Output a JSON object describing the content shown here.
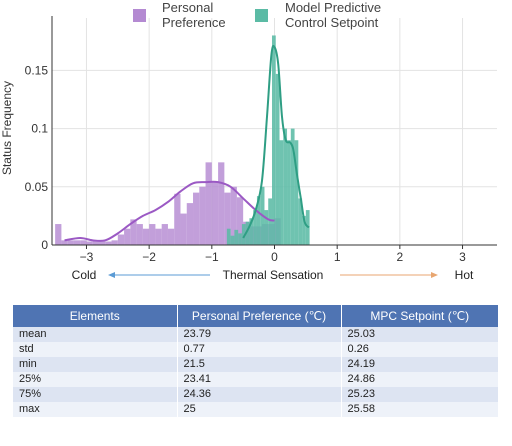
{
  "chart_data": {
    "type": "histogram",
    "ylabel": "Status Frequency",
    "xlabel": "Thermal Sensation",
    "x_scale_labels": {
      "cold": "Cold",
      "hot": "Hot"
    },
    "xlim": [
      -3.55,
      3.55
    ],
    "ylim": [
      0,
      0.195
    ],
    "x_ticks": [
      -3,
      -2,
      -1,
      0,
      1,
      2,
      3
    ],
    "y_ticks": [
      0,
      0.05,
      0.1,
      0.15
    ],
    "y_tick_labels": [
      "0",
      "0.05",
      "0.1",
      "0.15"
    ],
    "legend_position": "top",
    "series": [
      {
        "name": "Personal Preference",
        "color": "#b48ad2",
        "bin_width": 0.1,
        "bins": [
          [
            -3.5,
            0.018
          ],
          [
            -3.4,
            0.004
          ],
          [
            -3.3,
            0.004
          ],
          [
            -3.2,
            0.004
          ],
          [
            -3.1,
            0.004
          ],
          [
            -3.0,
            0.003
          ],
          [
            -2.9,
            0.003
          ],
          [
            -2.8,
            0.004
          ],
          [
            -2.7,
            0.003
          ],
          [
            -2.6,
            0.004
          ],
          [
            -2.5,
            0.009
          ],
          [
            -2.4,
            0.014
          ],
          [
            -2.3,
            0.022
          ],
          [
            -2.2,
            0.018
          ],
          [
            -2.1,
            0.014
          ],
          [
            -2.0,
            0.018
          ],
          [
            -1.9,
            0.014
          ],
          [
            -1.8,
            0.018
          ],
          [
            -1.7,
            0.014
          ],
          [
            -1.6,
            0.044
          ],
          [
            -1.5,
            0.027
          ],
          [
            -1.4,
            0.036
          ],
          [
            -1.3,
            0.045
          ],
          [
            -1.2,
            0.05
          ],
          [
            -1.1,
            0.071
          ],
          [
            -1.0,
            0.054
          ],
          [
            -0.9,
            0.071
          ],
          [
            -0.8,
            0.045
          ],
          [
            -0.7,
            0.05
          ],
          [
            -0.6,
            0.041
          ],
          [
            -0.5,
            0.02
          ],
          [
            -0.4,
            0.016
          ],
          [
            -0.3,
            0.016
          ],
          [
            -0.2,
            0.018
          ],
          [
            -0.1,
            0.018
          ],
          [
            0.0,
            0.023
          ]
        ],
        "kde": [
          [
            -3.35,
            0.004
          ],
          [
            -3.1,
            0.006
          ],
          [
            -2.9,
            0.004
          ],
          [
            -2.7,
            0.004
          ],
          [
            -2.5,
            0.01
          ],
          [
            -2.3,
            0.018
          ],
          [
            -2.1,
            0.025
          ],
          [
            -1.9,
            0.03
          ],
          [
            -1.7,
            0.037
          ],
          [
            -1.5,
            0.046
          ],
          [
            -1.3,
            0.053
          ],
          [
            -1.1,
            0.054
          ],
          [
            -0.9,
            0.054
          ],
          [
            -0.7,
            0.05
          ],
          [
            -0.5,
            0.04
          ],
          [
            -0.3,
            0.03
          ],
          [
            -0.1,
            0.022
          ],
          [
            0.0,
            0.021
          ]
        ]
      },
      {
        "name": "Model Predictive Control Setpoint",
        "color": "#5bbba5",
        "bin_width": 0.06,
        "bins": [
          [
            -0.76,
            0.014
          ],
          [
            -0.7,
            0.008
          ],
          [
            -0.64,
            0.013
          ],
          [
            -0.58,
            0.01
          ],
          [
            -0.52,
            0.018
          ],
          [
            -0.46,
            0.02
          ],
          [
            -0.4,
            0.023
          ],
          [
            -0.34,
            0.03
          ],
          [
            -0.28,
            0.042
          ],
          [
            -0.22,
            0.05
          ],
          [
            -0.16,
            0.03
          ],
          [
            -0.1,
            0.04
          ],
          [
            -0.04,
            0.18
          ],
          [
            0.02,
            0.147
          ],
          [
            0.08,
            0.09
          ],
          [
            0.14,
            0.1
          ],
          [
            0.2,
            0.09
          ],
          [
            0.26,
            0.1
          ],
          [
            0.32,
            0.09
          ],
          [
            0.38,
            0.04
          ],
          [
            0.44,
            0.025
          ],
          [
            0.5,
            0.03
          ]
        ],
        "kde": [
          [
            -0.5,
            0.006
          ],
          [
            -0.4,
            0.016
          ],
          [
            -0.3,
            0.03
          ],
          [
            -0.2,
            0.055
          ],
          [
            -0.12,
            0.11
          ],
          [
            -0.05,
            0.163
          ],
          [
            0.0,
            0.17
          ],
          [
            0.06,
            0.155
          ],
          [
            0.12,
            0.11
          ],
          [
            0.18,
            0.09
          ],
          [
            0.25,
            0.088
          ],
          [
            0.3,
            0.082
          ],
          [
            0.36,
            0.06
          ],
          [
            0.42,
            0.04
          ],
          [
            0.48,
            0.02
          ],
          [
            0.55,
            0.015
          ]
        ]
      }
    ]
  },
  "legend": [
    {
      "label_line1": "Personal",
      "label_line2": "Preference",
      "color": "#b48ad2"
    },
    {
      "label_line1": "Model Predictive",
      "label_line2": "Control Setpoint",
      "color": "#5bbba5"
    }
  ],
  "table": {
    "headers": [
      "Elements",
      "Personal Preference (℃)",
      "MPC Setpoint (℃)"
    ],
    "rows": [
      [
        "mean",
        "23.79",
        "25.03"
      ],
      [
        "std",
        "0.77",
        "0.26"
      ],
      [
        "min",
        "21.5",
        "24.19"
      ],
      [
        "25%",
        "23.41",
        "24.86"
      ],
      [
        "75%",
        "24.36",
        "25.23"
      ],
      [
        "max",
        "25",
        "25.58"
      ]
    ]
  }
}
